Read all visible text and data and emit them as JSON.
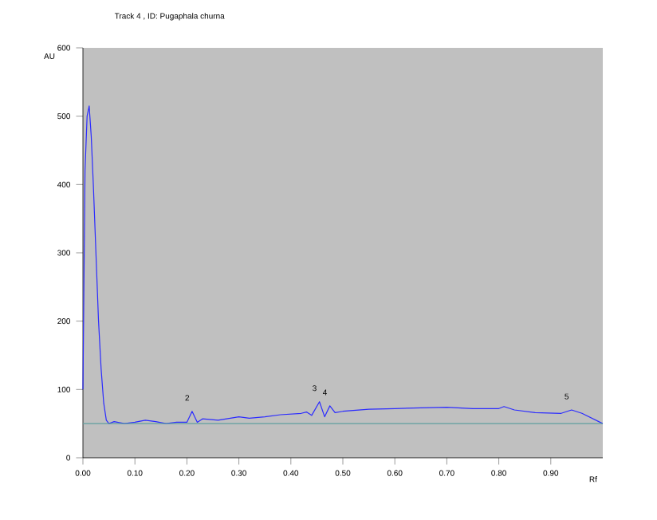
{
  "chart_data": {
    "type": "line",
    "title": "Track  4 , ID: Pugaphala churna",
    "xlabel": "Rf",
    "ylabel": "AU",
    "x": [
      0.0,
      0.004,
      0.008,
      0.012,
      0.016,
      0.02,
      0.025,
      0.03,
      0.035,
      0.04,
      0.045,
      0.05,
      0.06,
      0.08,
      0.1,
      0.12,
      0.14,
      0.16,
      0.18,
      0.2,
      0.21,
      0.22,
      0.23,
      0.26,
      0.3,
      0.32,
      0.35,
      0.38,
      0.42,
      0.43,
      0.44,
      0.455,
      0.465,
      0.475,
      0.485,
      0.5,
      0.55,
      0.6,
      0.65,
      0.7,
      0.75,
      0.8,
      0.81,
      0.83,
      0.87,
      0.92,
      0.94,
      0.96,
      1.0
    ],
    "series": [
      {
        "color": "#2b2bff",
        "values": [
          100,
          420,
          500,
          515,
          470,
          400,
          300,
          200,
          130,
          80,
          55,
          50,
          53,
          50,
          52,
          55,
          53,
          50,
          52,
          52,
          68,
          52,
          57,
          55,
          60,
          58,
          60,
          63,
          65,
          67,
          62,
          82,
          60,
          76,
          66,
          68,
          71,
          72,
          73,
          74,
          72,
          72,
          75,
          70,
          66,
          65,
          70,
          65,
          50
        ]
      }
    ],
    "xlim": [
      0,
      1.0
    ],
    "ylim": [
      0,
      600
    ],
    "xticks": [
      {
        "value": 0,
        "label": "0.00"
      },
      {
        "value": 0.1,
        "label": "0.10"
      },
      {
        "value": 0.2,
        "label": "0.20"
      },
      {
        "value": 0.3,
        "label": "0.30"
      },
      {
        "value": 0.4,
        "label": "0.40"
      },
      {
        "value": 0.5,
        "label": "0.50"
      },
      {
        "value": 0.6,
        "label": "0.60"
      },
      {
        "value": 0.7,
        "label": "0.70"
      },
      {
        "value": 0.8,
        "label": "0.80"
      },
      {
        "value": 0.9,
        "label": "0.90"
      }
    ],
    "yticks": [
      0,
      100,
      200,
      300,
      400,
      500,
      600
    ],
    "ref_lines": [
      {
        "axis": "y",
        "value": 50,
        "color": "#5f9f9f"
      }
    ],
    "annotations": [
      {
        "text": "2",
        "x": 0.21,
        "y": 68
      },
      {
        "text": "3",
        "x": 0.455,
        "y": 82
      },
      {
        "text": "4",
        "x": 0.475,
        "y": 76
      },
      {
        "text": "5",
        "x": 0.94,
        "y": 70
      }
    ]
  }
}
